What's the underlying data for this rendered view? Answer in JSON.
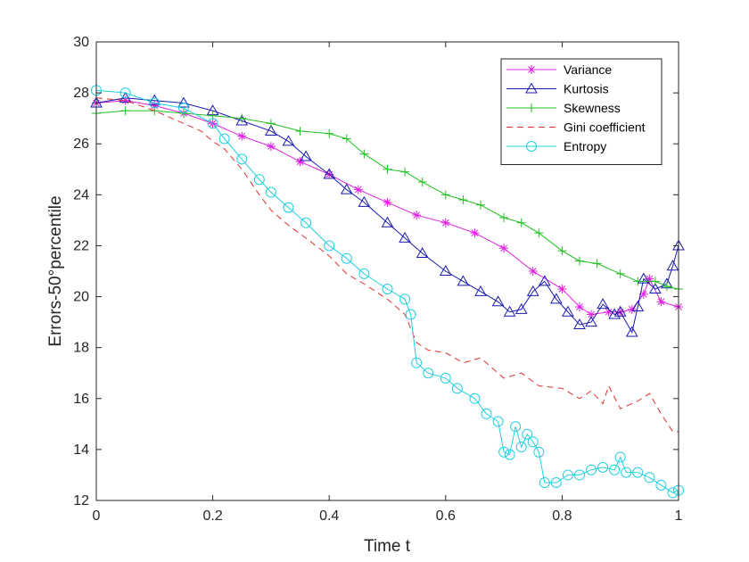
{
  "chart_data": {
    "type": "line",
    "title": "",
    "xlabel": "Time t",
    "ylabel": "Errors-50°percentile",
    "xlim": [
      0,
      1
    ],
    "ylim": [
      12,
      30
    ],
    "xticks": [
      0,
      0.2,
      0.4,
      0.6,
      0.8,
      1
    ],
    "xtick_labels": [
      "0",
      "0.2",
      "0.4",
      "0.6",
      "0.8",
      "1"
    ],
    "yticks": [
      12,
      14,
      16,
      18,
      20,
      22,
      24,
      26,
      28,
      30
    ],
    "ytick_labels": [
      "12",
      "14",
      "16",
      "18",
      "20",
      "22",
      "24",
      "26",
      "28",
      "30"
    ],
    "grid": false,
    "legend_position": "top-right",
    "series": [
      {
        "name": "Variance",
        "color": "#e020e0",
        "marker": "asterisk",
        "line": "solid",
        "points": [
          [
            0.0,
            27.6
          ],
          [
            0.05,
            27.7
          ],
          [
            0.1,
            27.5
          ],
          [
            0.15,
            27.2
          ],
          [
            0.2,
            26.8
          ],
          [
            0.25,
            26.3
          ],
          [
            0.3,
            25.9
          ],
          [
            0.35,
            25.3
          ],
          [
            0.4,
            24.8
          ],
          [
            0.45,
            24.2
          ],
          [
            0.5,
            23.7
          ],
          [
            0.55,
            23.2
          ],
          [
            0.6,
            22.9
          ],
          [
            0.65,
            22.5
          ],
          [
            0.7,
            21.9
          ],
          [
            0.75,
            21.0
          ],
          [
            0.8,
            20.3
          ],
          [
            0.83,
            19.6
          ],
          [
            0.85,
            19.3
          ],
          [
            0.88,
            19.4
          ],
          [
            0.9,
            19.4
          ],
          [
            0.92,
            19.5
          ],
          [
            0.94,
            20.1
          ],
          [
            0.95,
            20.7
          ],
          [
            0.97,
            19.8
          ],
          [
            1.0,
            19.6
          ]
        ]
      },
      {
        "name": "Kurtosis",
        "color": "#1a1ab0",
        "marker": "triangle",
        "line": "solid",
        "points": [
          [
            0.0,
            27.6
          ],
          [
            0.05,
            27.8
          ],
          [
            0.1,
            27.7
          ],
          [
            0.15,
            27.6
          ],
          [
            0.2,
            27.3
          ],
          [
            0.25,
            26.9
          ],
          [
            0.3,
            26.5
          ],
          [
            0.33,
            26.1
          ],
          [
            0.36,
            25.5
          ],
          [
            0.4,
            24.8
          ],
          [
            0.43,
            24.2
          ],
          [
            0.46,
            23.7
          ],
          [
            0.5,
            22.9
          ],
          [
            0.53,
            22.3
          ],
          [
            0.56,
            21.7
          ],
          [
            0.6,
            21.0
          ],
          [
            0.63,
            20.6
          ],
          [
            0.66,
            20.2
          ],
          [
            0.69,
            19.8
          ],
          [
            0.71,
            19.4
          ],
          [
            0.73,
            19.5
          ],
          [
            0.75,
            20.2
          ],
          [
            0.77,
            20.6
          ],
          [
            0.79,
            19.9
          ],
          [
            0.81,
            19.4
          ],
          [
            0.83,
            18.9
          ],
          [
            0.85,
            19.0
          ],
          [
            0.87,
            19.7
          ],
          [
            0.89,
            19.3
          ],
          [
            0.9,
            19.4
          ],
          [
            0.92,
            18.6
          ],
          [
            0.93,
            19.6
          ],
          [
            0.94,
            20.7
          ],
          [
            0.96,
            20.3
          ],
          [
            0.98,
            20.5
          ],
          [
            0.99,
            21.2
          ],
          [
            1.0,
            22.0
          ]
        ]
      },
      {
        "name": "Skewness",
        "color": "#20c020",
        "marker": "plus",
        "line": "solid",
        "points": [
          [
            0.0,
            27.2
          ],
          [
            0.05,
            27.3
          ],
          [
            0.1,
            27.3
          ],
          [
            0.15,
            27.2
          ],
          [
            0.2,
            27.1
          ],
          [
            0.25,
            27.0
          ],
          [
            0.3,
            26.8
          ],
          [
            0.35,
            26.5
          ],
          [
            0.4,
            26.4
          ],
          [
            0.43,
            26.2
          ],
          [
            0.46,
            25.6
          ],
          [
            0.5,
            25.0
          ],
          [
            0.53,
            24.9
          ],
          [
            0.56,
            24.5
          ],
          [
            0.6,
            24.0
          ],
          [
            0.63,
            23.8
          ],
          [
            0.66,
            23.6
          ],
          [
            0.7,
            23.1
          ],
          [
            0.73,
            22.9
          ],
          [
            0.76,
            22.5
          ],
          [
            0.8,
            21.8
          ],
          [
            0.83,
            21.4
          ],
          [
            0.86,
            21.3
          ],
          [
            0.9,
            20.9
          ],
          [
            0.93,
            20.6
          ],
          [
            0.96,
            20.6
          ],
          [
            0.98,
            20.4
          ],
          [
            1.0,
            20.3
          ]
        ]
      },
      {
        "name": "Gini coefficient",
        "color": "#e03030",
        "marker": "none",
        "line": "dashed",
        "points": [
          [
            0.0,
            27.8
          ],
          [
            0.05,
            27.7
          ],
          [
            0.1,
            27.3
          ],
          [
            0.15,
            26.8
          ],
          [
            0.18,
            26.5
          ],
          [
            0.2,
            26.1
          ],
          [
            0.22,
            25.8
          ],
          [
            0.25,
            25.0
          ],
          [
            0.28,
            24.0
          ],
          [
            0.3,
            23.4
          ],
          [
            0.33,
            22.8
          ],
          [
            0.36,
            22.3
          ],
          [
            0.4,
            21.6
          ],
          [
            0.43,
            20.9
          ],
          [
            0.46,
            20.5
          ],
          [
            0.5,
            19.9
          ],
          [
            0.53,
            19.3
          ],
          [
            0.55,
            18.2
          ],
          [
            0.57,
            17.9
          ],
          [
            0.6,
            17.8
          ],
          [
            0.63,
            17.4
          ],
          [
            0.66,
            17.6
          ],
          [
            0.7,
            16.8
          ],
          [
            0.73,
            17.0
          ],
          [
            0.76,
            16.5
          ],
          [
            0.8,
            16.4
          ],
          [
            0.83,
            16.0
          ],
          [
            0.85,
            16.3
          ],
          [
            0.87,
            15.8
          ],
          [
            0.88,
            16.5
          ],
          [
            0.9,
            15.6
          ],
          [
            0.93,
            15.9
          ],
          [
            0.95,
            16.2
          ],
          [
            0.97,
            15.4
          ],
          [
            0.99,
            14.7
          ],
          [
            1.0,
            14.7
          ]
        ]
      },
      {
        "name": "Entropy",
        "color": "#20d0e0",
        "marker": "circle",
        "line": "solid",
        "points": [
          [
            0.0,
            28.1
          ],
          [
            0.05,
            28.0
          ],
          [
            0.1,
            27.6
          ],
          [
            0.15,
            27.4
          ],
          [
            0.2,
            26.8
          ],
          [
            0.22,
            26.2
          ],
          [
            0.25,
            25.4
          ],
          [
            0.28,
            24.6
          ],
          [
            0.3,
            24.1
          ],
          [
            0.33,
            23.5
          ],
          [
            0.36,
            22.9
          ],
          [
            0.4,
            22.0
          ],
          [
            0.43,
            21.5
          ],
          [
            0.46,
            20.9
          ],
          [
            0.5,
            20.3
          ],
          [
            0.53,
            19.9
          ],
          [
            0.54,
            19.3
          ],
          [
            0.55,
            17.4
          ],
          [
            0.57,
            17.0
          ],
          [
            0.6,
            16.8
          ],
          [
            0.62,
            16.4
          ],
          [
            0.65,
            16.0
          ],
          [
            0.67,
            15.4
          ],
          [
            0.69,
            15.1
          ],
          [
            0.7,
            13.9
          ],
          [
            0.71,
            13.8
          ],
          [
            0.72,
            14.9
          ],
          [
            0.73,
            14.1
          ],
          [
            0.74,
            14.6
          ],
          [
            0.75,
            14.3
          ],
          [
            0.76,
            13.9
          ],
          [
            0.77,
            12.7
          ],
          [
            0.79,
            12.7
          ],
          [
            0.81,
            13.0
          ],
          [
            0.83,
            13.0
          ],
          [
            0.85,
            13.2
          ],
          [
            0.87,
            13.3
          ],
          [
            0.89,
            13.2
          ],
          [
            0.9,
            13.7
          ],
          [
            0.91,
            13.1
          ],
          [
            0.93,
            13.1
          ],
          [
            0.95,
            12.9
          ],
          [
            0.97,
            12.6
          ],
          [
            0.99,
            12.3
          ],
          [
            1.0,
            12.4
          ]
        ]
      }
    ]
  }
}
